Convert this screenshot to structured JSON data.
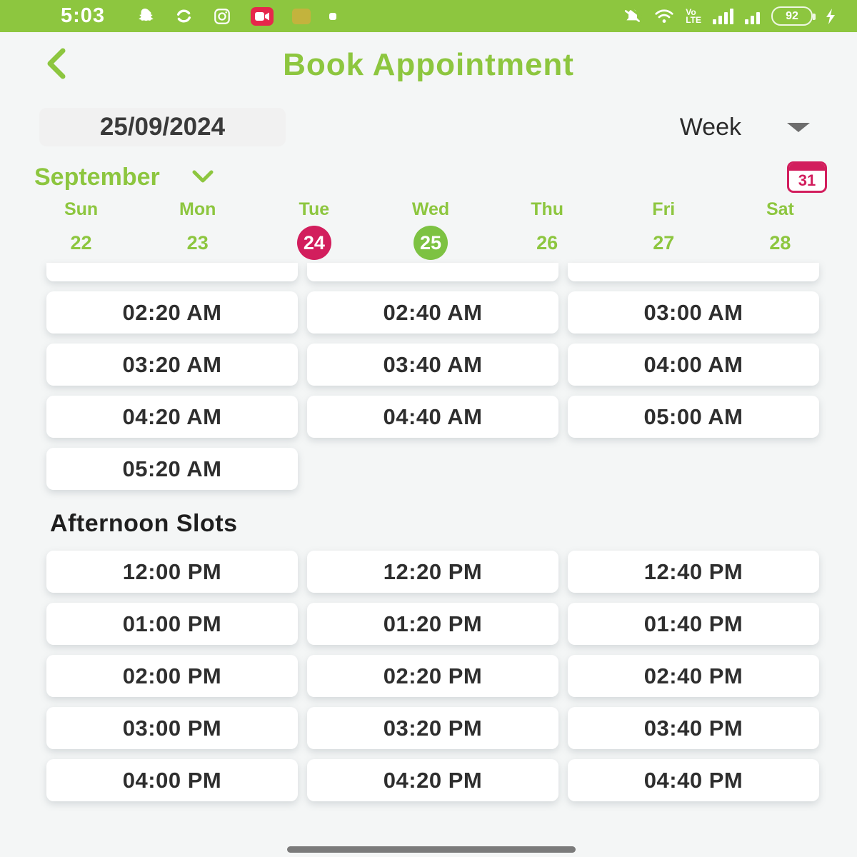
{
  "colors": {
    "green": "#8DC63F",
    "selected_green": "#7DC242",
    "pink": "#D21E5D",
    "dark_text": "#2E2E2E"
  },
  "status_bar": {
    "time": "5:03",
    "left_icons": [
      "snapchat-icon",
      "sync-icon",
      "instagram-icon",
      "video-notification-icon",
      "faded-notification-icon",
      "dot-notification-icon"
    ],
    "right_icons": [
      "bell-muted-icon",
      "wifi-icon",
      "signal-bars-icon",
      "signal-bars-icon-2",
      "battery-icon",
      "charging-bolt-icon"
    ],
    "volte_line1": "Vo",
    "volte_line2": "LTE",
    "battery_percent": "92"
  },
  "header": {
    "title": "Book Appointment"
  },
  "controls": {
    "date_value": "25/09/2024",
    "view_mode": "Week",
    "month": "September",
    "calendar_day": "31"
  },
  "week_strip": {
    "days": [
      {
        "label": "Sun",
        "date": "22",
        "state": "normal"
      },
      {
        "label": "Mon",
        "date": "23",
        "state": "normal"
      },
      {
        "label": "Tue",
        "date": "24",
        "state": "today"
      },
      {
        "label": "Wed",
        "date": "25",
        "state": "selected"
      },
      {
        "label": "Thu",
        "date": "26",
        "state": "normal"
      },
      {
        "label": "Fri",
        "date": "27",
        "state": "normal"
      },
      {
        "label": "Sat",
        "date": "28",
        "state": "normal"
      }
    ]
  },
  "slots": {
    "partial_row_count": 3,
    "morning_times": [
      "02:20 AM",
      "02:40 AM",
      "03:00 AM",
      "03:20 AM",
      "03:40 AM",
      "04:00 AM",
      "04:20 AM",
      "04:40 AM",
      "05:00 AM",
      "05:20 AM"
    ],
    "afternoon_heading": "Afternoon Slots",
    "afternoon_times": [
      "12:00 PM",
      "12:20 PM",
      "12:40 PM",
      "01:00 PM",
      "01:20 PM",
      "01:40 PM",
      "02:00 PM",
      "02:20 PM",
      "02:40 PM",
      "03:00 PM",
      "03:20 PM",
      "03:40 PM",
      "04:00 PM",
      "04:20 PM",
      "04:40 PM"
    ]
  }
}
